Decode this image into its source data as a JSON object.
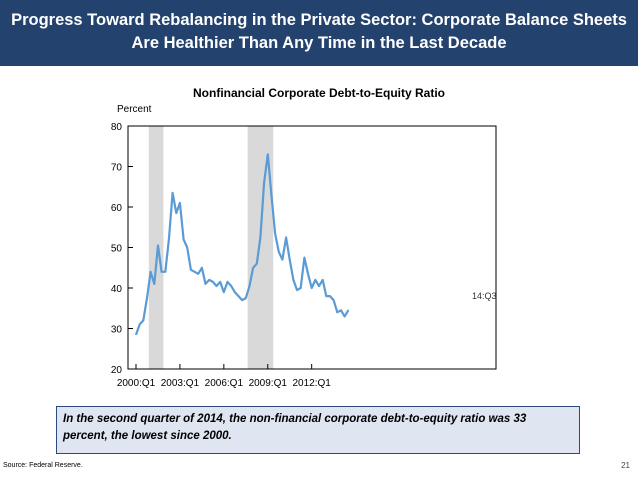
{
  "header": {
    "title_line1": "Progress Toward Rebalancing in the Private Sector: Corporate Balance Sheets",
    "title_line2": "Are Healthier Than Any Time in the Last Decade"
  },
  "chart_data": {
    "type": "line",
    "title": "Nonfinancial Corporate Debt-to-Equity Ratio",
    "ylabel": "Percent",
    "ylim": [
      20,
      80
    ],
    "yticks": [
      20,
      30,
      40,
      50,
      60,
      70,
      80
    ],
    "xticks": [
      "2000:Q1",
      "2003:Q1",
      "2006:Q1",
      "2009:Q1",
      "2012:Q1"
    ],
    "annotation": "14:Q3",
    "recessions": [
      {
        "start": "2001:Q1",
        "end": "2001:Q4"
      },
      {
        "start": "2007:Q4",
        "end": "2009:Q2"
      }
    ],
    "line_color": "#5b9bd5",
    "recession_color": "#d9d9d9",
    "series": [
      {
        "x": [
          "2000:Q1",
          "2000:Q2",
          "2000:Q3",
          "2000:Q4",
          "2001:Q1",
          "2001:Q2",
          "2001:Q3",
          "2001:Q4",
          "2002:Q1",
          "2002:Q2",
          "2002:Q3",
          "2002:Q4",
          "2003:Q1",
          "2003:Q2",
          "2003:Q3",
          "2003:Q4",
          "2004:Q1",
          "2004:Q2",
          "2004:Q3",
          "2004:Q4",
          "2005:Q1",
          "2005:Q2",
          "2005:Q3",
          "2005:Q4",
          "2006:Q1",
          "2006:Q2",
          "2006:Q3",
          "2006:Q4",
          "2007:Q1",
          "2007:Q2",
          "2007:Q3",
          "2007:Q4",
          "2008:Q1",
          "2008:Q2",
          "2008:Q3",
          "2008:Q4",
          "2009:Q1",
          "2009:Q2",
          "2009:Q3",
          "2009:Q4",
          "2010:Q1",
          "2010:Q2",
          "2010:Q3",
          "2010:Q4",
          "2011:Q1",
          "2011:Q2",
          "2011:Q3",
          "2011:Q4",
          "2012:Q1",
          "2012:Q2",
          "2012:Q3",
          "2012:Q4",
          "2013:Q1",
          "2013:Q2",
          "2013:Q3",
          "2013:Q4",
          "2014:Q1",
          "2014:Q2",
          "2014:Q3"
        ],
        "values": [
          28.5,
          31.0,
          32.0,
          37.5,
          44.0,
          41.0,
          50.5,
          44.0,
          44.0,
          52.0,
          63.5,
          58.5,
          61.0,
          52.0,
          50.0,
          44.5,
          44.0,
          43.5,
          45.0,
          41.0,
          42.0,
          41.5,
          40.5,
          41.5,
          39.0,
          41.5,
          40.5,
          39.0,
          38.0,
          37.0,
          37.5,
          40.5,
          45.0,
          46.0,
          52.5,
          66.0,
          73.0,
          63.0,
          53.5,
          49.0,
          47.0,
          52.5,
          47.0,
          42.0,
          39.5,
          40.0,
          47.5,
          43.5,
          40.0,
          42.0,
          40.5,
          42.0,
          38.0,
          38.0,
          37.0,
          34.0,
          34.5,
          33.0,
          34.5
        ]
      }
    ]
  },
  "note": {
    "text": "In the second quarter of 2014, the non-financial corporate debt-to-equity ratio was 33 percent, the lowest since 2000."
  },
  "footer": {
    "source": "Source: Federal Reserve.",
    "page_number": "21"
  }
}
